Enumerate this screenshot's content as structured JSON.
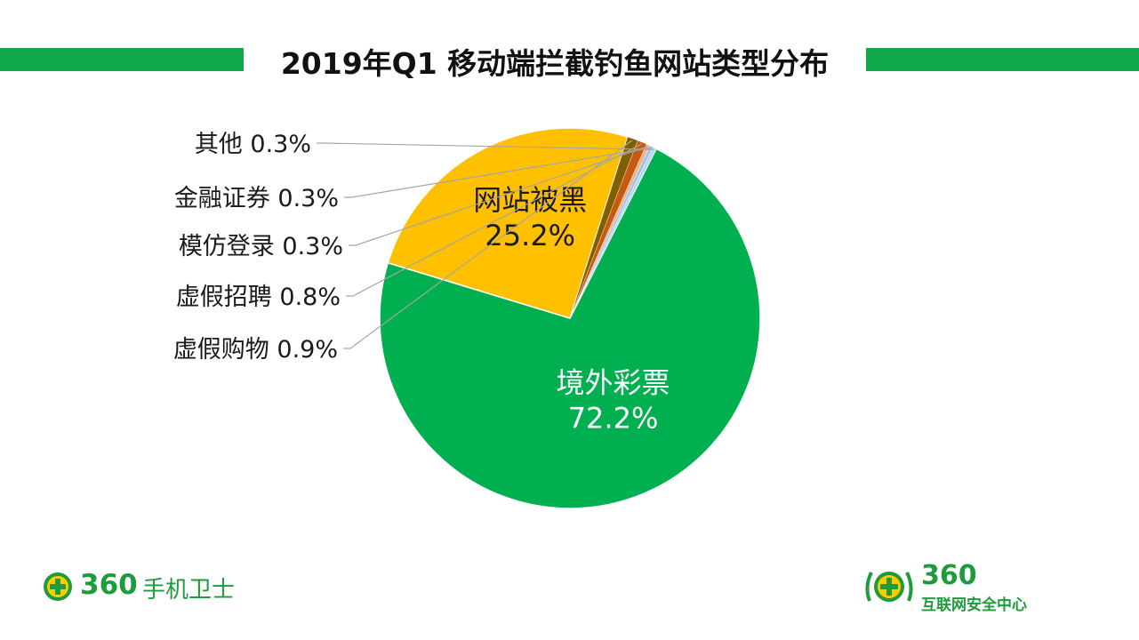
{
  "title": "2019年Q1 移动端拦截钓鱼网站类型分布",
  "colors": {
    "accent_bar": "#11a84b",
    "brand": "#1f9a3c"
  },
  "chart_data": {
    "type": "pie",
    "title": "2019年Q1 移动端拦截钓鱼网站类型分布",
    "start_angle_deg": -63,
    "slices": [
      {
        "name": "境外彩票",
        "value": 72.2,
        "label_value": "72.2%",
        "color": "#00b050",
        "label_color": "#ffffff",
        "label_position": "inside"
      },
      {
        "name": "网站被黑",
        "value": 25.2,
        "label_value": "25.2%",
        "color": "#ffc000",
        "label_color": "#1a1a1a",
        "label_position": "inside"
      },
      {
        "name": "虚假购物",
        "value": 0.9,
        "label_value": "0.9%",
        "color": "#7f6000",
        "label_color": "#1a1a1a",
        "label_position": "outside"
      },
      {
        "name": "虚假招聘",
        "value": 0.8,
        "label_value": "0.8%",
        "color": "#c55a11",
        "label_color": "#1a1a1a",
        "label_position": "outside"
      },
      {
        "name": "模仿登录",
        "value": 0.3,
        "label_value": "0.3%",
        "color": "#f4b183",
        "label_color": "#1a1a1a",
        "label_position": "outside"
      },
      {
        "name": "金融证券",
        "value": 0.3,
        "label_value": "0.3%",
        "color": "#9dc3e6",
        "label_color": "#1a1a1a",
        "label_position": "outside"
      },
      {
        "name": "其他",
        "value": 0.3,
        "label_value": "0.3%",
        "color": "#bdd7ee",
        "label_color": "#1a1a1a",
        "label_position": "outside"
      }
    ]
  },
  "footer": {
    "left_logo": {
      "number": "360",
      "name": "手机卫士"
    },
    "right_logo": {
      "number": "360",
      "name": "互联网安全中心"
    }
  }
}
